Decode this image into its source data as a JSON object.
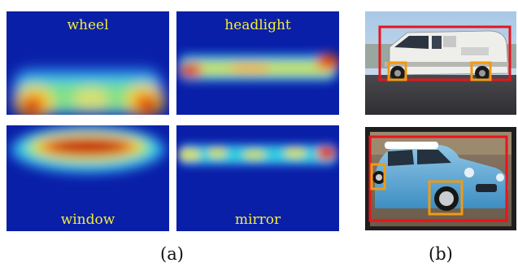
{
  "panel_a": {
    "caption": "(a)",
    "heatmaps": [
      {
        "label": "wheel"
      },
      {
        "label": "headlight"
      },
      {
        "label": "window"
      },
      {
        "label": "mirror"
      }
    ]
  },
  "panel_b": {
    "caption": "(b)"
  },
  "colors": {
    "heatmap_low": "#0a1fa8",
    "heatmap_high": "#c01010",
    "label_text": "#f2ec3a",
    "object_box": "#e8141c",
    "part_box": "#f29a12"
  }
}
